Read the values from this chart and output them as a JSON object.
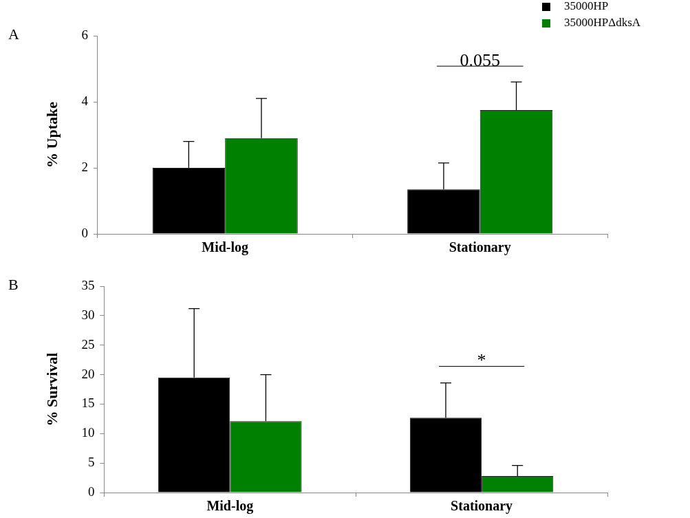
{
  "chart_data": [
    {
      "type": "bar",
      "title": "A",
      "ylabel": "% Uptake",
      "categories": [
        "Mid-log",
        "Stationary"
      ],
      "series": [
        {
          "name": "35000HP",
          "color": "#000000",
          "values": [
            2.0,
            1.35
          ],
          "errors": [
            [
              2.0,
              2.8
            ],
            [
              1.35,
              2.15
            ]
          ]
        },
        {
          "name": "35000HPΔdksA",
          "color": "#008000",
          "values": [
            2.9,
            3.75
          ],
          "errors": [
            [
              2.9,
              4.1
            ],
            [
              3.75,
              4.6
            ]
          ]
        }
      ],
      "ylim": [
        0,
        6
      ],
      "yticks": [
        0,
        2,
        4,
        6
      ],
      "grid": false,
      "legend": "top right",
      "annotations": [
        "0.055"
      ]
    },
    {
      "type": "bar",
      "title": "B",
      "ylabel": "% Survival",
      "categories": [
        "Mid-log",
        "Stationary"
      ],
      "series": [
        {
          "color": "#000000",
          "values": [
            19.5,
            12.7
          ],
          "errors": [
            [
              19.5,
              31.2
            ],
            [
              12.7,
              18.6
            ]
          ]
        },
        {
          "color": "#008000",
          "values": [
            12.1,
            2.8
          ],
          "errors": [
            [
              12.1,
              20.0
            ],
            [
              2.8,
              4.6
            ]
          ]
        }
      ],
      "ylim": [
        0,
        35
      ],
      "yticks": [
        0,
        5,
        10,
        15,
        20,
        25,
        30,
        35
      ],
      "grid": false,
      "legend": false,
      "annotations": [
        "*"
      ]
    }
  ]
}
